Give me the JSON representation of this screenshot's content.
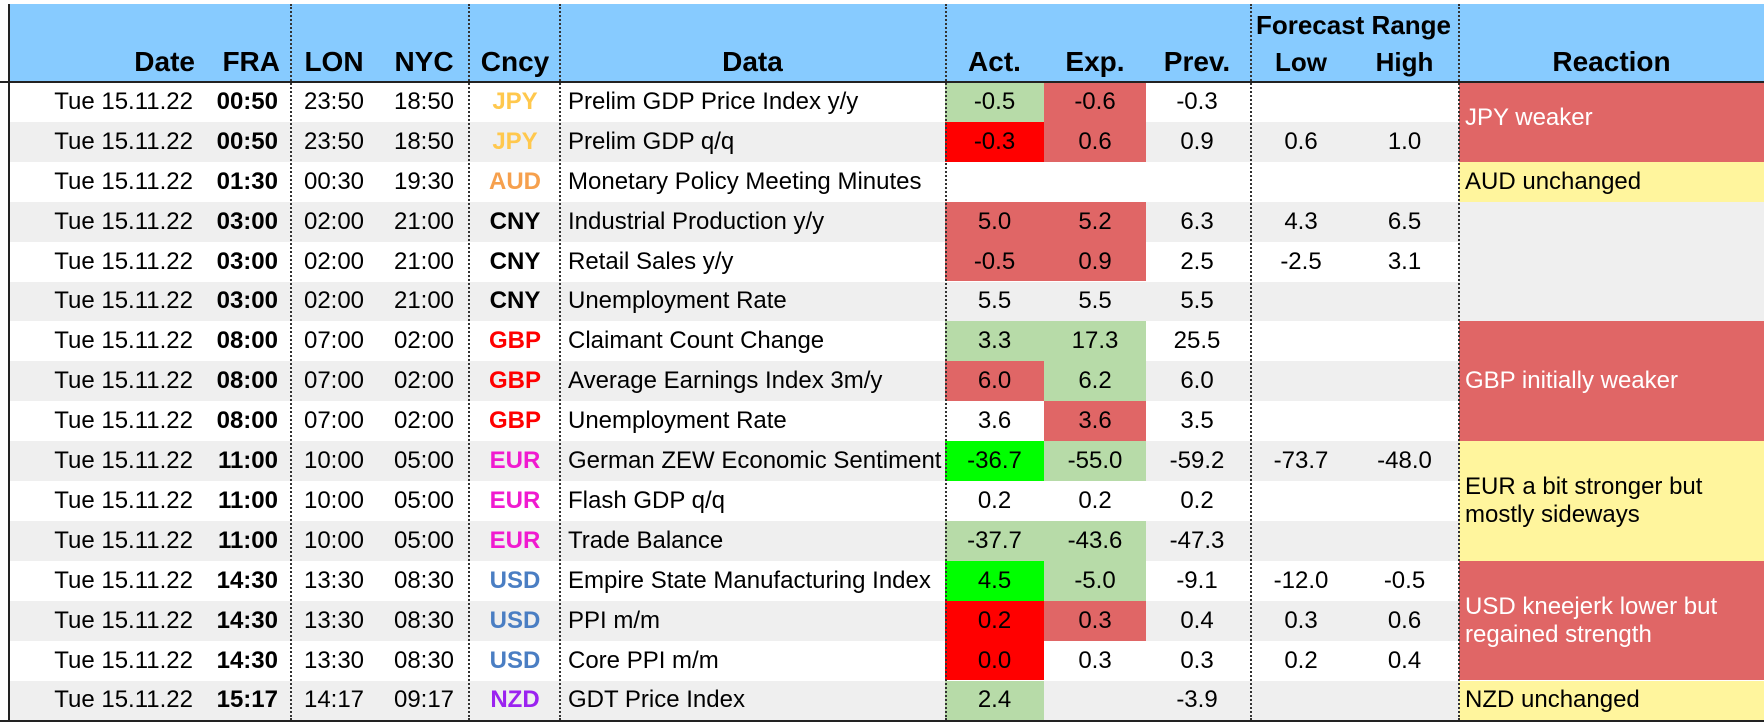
{
  "colors": {
    "header_bg": "#87cbff",
    "stripe": "#efefef",
    "green": "#b7dba8",
    "bright_green": "#00ff00",
    "red_light": "#e06666",
    "red": "#ff0000",
    "yellow": "#fff59d",
    "JPY": "#ffc84d",
    "AUD": "#f6a04d",
    "CNY": "#000000",
    "GBP": "#ff0000",
    "EUR": "#f01ad0",
    "USD": "#4a7ec3",
    "NZD": "#9b22f0"
  },
  "header": {
    "date": "Date",
    "fra": "FRA",
    "lon": "LON",
    "nyc": "NYC",
    "cncy": "Cncy",
    "data": "Data",
    "act": "Act.",
    "exp": "Exp.",
    "prev": "Prev.",
    "forecast_range": "Forecast Range",
    "low": "Low",
    "high": "High",
    "reaction": "Reaction"
  },
  "rows": [
    {
      "date": "Tue 15.11.22",
      "fra": "00:50",
      "lon": "23:50",
      "nyc": "18:50",
      "cncy": "JPY",
      "data": "Prelim GDP Price Index y/y",
      "act": "-0.5",
      "act_bg": "green",
      "exp": "-0.6",
      "exp_bg": "red_light",
      "prev": "-0.3",
      "low": "",
      "high": ""
    },
    {
      "date": "Tue 15.11.22",
      "fra": "00:50",
      "lon": "23:50",
      "nyc": "18:50",
      "cncy": "JPY",
      "data": "Prelim GDP q/q",
      "act": "-0.3",
      "act_bg": "red",
      "exp": "0.6",
      "exp_bg": "red_light",
      "prev": "0.9",
      "low": "0.6",
      "high": "1.0"
    },
    {
      "date": "Tue 15.11.22",
      "fra": "01:30",
      "lon": "00:30",
      "nyc": "19:30",
      "cncy": "AUD",
      "data": "Monetary Policy Meeting Minutes",
      "act": "",
      "act_bg": "",
      "exp": "",
      "exp_bg": "",
      "prev": "",
      "low": "",
      "high": ""
    },
    {
      "date": "Tue 15.11.22",
      "fra": "03:00",
      "lon": "02:00",
      "nyc": "21:00",
      "cncy": "CNY",
      "data": "Industrial Production y/y",
      "act": "5.0",
      "act_bg": "red_light",
      "exp": "5.2",
      "exp_bg": "red_light",
      "prev": "6.3",
      "low": "4.3",
      "high": "6.5"
    },
    {
      "date": "Tue 15.11.22",
      "fra": "03:00",
      "lon": "02:00",
      "nyc": "21:00",
      "cncy": "CNY",
      "data": "Retail Sales y/y",
      "act": "-0.5",
      "act_bg": "red_light",
      "exp": "0.9",
      "exp_bg": "red_light",
      "prev": "2.5",
      "low": "-2.5",
      "high": "3.1"
    },
    {
      "date": "Tue 15.11.22",
      "fra": "03:00",
      "lon": "02:00",
      "nyc": "21:00",
      "cncy": "CNY",
      "data": "Unemployment Rate",
      "act": "5.5",
      "act_bg": "",
      "exp": "5.5",
      "exp_bg": "",
      "prev": "5.5",
      "low": "",
      "high": ""
    },
    {
      "date": "Tue 15.11.22",
      "fra": "08:00",
      "lon": "07:00",
      "nyc": "02:00",
      "cncy": "GBP",
      "data": "Claimant Count Change",
      "act": "3.3",
      "act_bg": "green",
      "exp": "17.3",
      "exp_bg": "green",
      "prev": "25.5",
      "low": "",
      "high": ""
    },
    {
      "date": "Tue 15.11.22",
      "fra": "08:00",
      "lon": "07:00",
      "nyc": "02:00",
      "cncy": "GBP",
      "data": "Average Earnings Index 3m/y",
      "act": "6.0",
      "act_bg": "red_light",
      "exp": "6.2",
      "exp_bg": "green",
      "prev": "6.0",
      "low": "",
      "high": ""
    },
    {
      "date": "Tue 15.11.22",
      "fra": "08:00",
      "lon": "07:00",
      "nyc": "02:00",
      "cncy": "GBP",
      "data": "Unemployment Rate",
      "act": "3.6",
      "act_bg": "",
      "exp": "3.6",
      "exp_bg": "red_light",
      "prev": "3.5",
      "low": "",
      "high": ""
    },
    {
      "date": "Tue 15.11.22",
      "fra": "11:00",
      "lon": "10:00",
      "nyc": "05:00",
      "cncy": "EUR",
      "data": "German ZEW Economic Sentiment",
      "act": "-36.7",
      "act_bg": "bright_green",
      "exp": "-55.0",
      "exp_bg": "green",
      "prev": "-59.2",
      "low": "-73.7",
      "high": "-48.0"
    },
    {
      "date": "Tue 15.11.22",
      "fra": "11:00",
      "lon": "10:00",
      "nyc": "05:00",
      "cncy": "EUR",
      "data": "Flash GDP q/q",
      "act": "0.2",
      "act_bg": "",
      "exp": "0.2",
      "exp_bg": "",
      "prev": "0.2",
      "low": "",
      "high": ""
    },
    {
      "date": "Tue 15.11.22",
      "fra": "11:00",
      "lon": "10:00",
      "nyc": "05:00",
      "cncy": "EUR",
      "data": "Trade Balance",
      "act": "-37.7",
      "act_bg": "green",
      "exp": "-43.6",
      "exp_bg": "green",
      "prev": "-47.3",
      "low": "",
      "high": ""
    },
    {
      "date": "Tue 15.11.22",
      "fra": "14:30",
      "lon": "13:30",
      "nyc": "08:30",
      "cncy": "USD",
      "data": "Empire State Manufacturing Index",
      "act": "4.5",
      "act_bg": "bright_green",
      "exp": "-5.0",
      "exp_bg": "green",
      "prev": "-9.1",
      "low": "-12.0",
      "high": "-0.5"
    },
    {
      "date": "Tue 15.11.22",
      "fra": "14:30",
      "lon": "13:30",
      "nyc": "08:30",
      "cncy": "USD",
      "data": "PPI m/m",
      "act": "0.2",
      "act_bg": "red",
      "exp": "0.3",
      "exp_bg": "red_light",
      "prev": "0.4",
      "low": "0.3",
      "high": "0.6"
    },
    {
      "date": "Tue 15.11.22",
      "fra": "14:30",
      "lon": "13:30",
      "nyc": "08:30",
      "cncy": "USD",
      "data": "Core PPI m/m",
      "act": "0.0",
      "act_bg": "red",
      "exp": "0.3",
      "exp_bg": "",
      "prev": "0.3",
      "low": "0.2",
      "high": "0.4"
    },
    {
      "date": "Tue 15.11.22",
      "fra": "15:17",
      "lon": "14:17",
      "nyc": "09:17",
      "cncy": "NZD",
      "data": "GDT Price Index",
      "act": "2.4",
      "act_bg": "green",
      "exp": "",
      "exp_bg": "",
      "prev": "-3.9",
      "low": "",
      "high": ""
    }
  ],
  "reactions": [
    {
      "text": "JPY weaker",
      "first_row": 0,
      "last_row": 1,
      "bg": "red_light"
    },
    {
      "text": "AUD unchanged",
      "first_row": 2,
      "last_row": 2,
      "bg": "yellow"
    },
    {
      "text": "",
      "first_row": 3,
      "last_row": 5,
      "bg": "stripe"
    },
    {
      "text": "GBP initially weaker",
      "first_row": 6,
      "last_row": 8,
      "bg": "red_light"
    },
    {
      "text": "EUR a bit stronger but\nmostly sideways",
      "first_row": 9,
      "last_row": 11,
      "bg": "yellow"
    },
    {
      "text": "USD kneejerk lower but\nregained strength",
      "first_row": 12,
      "last_row": 14,
      "bg": "red_light"
    },
    {
      "text": "NZD unchanged",
      "first_row": 15,
      "last_row": 15,
      "bg": "yellow"
    }
  ]
}
